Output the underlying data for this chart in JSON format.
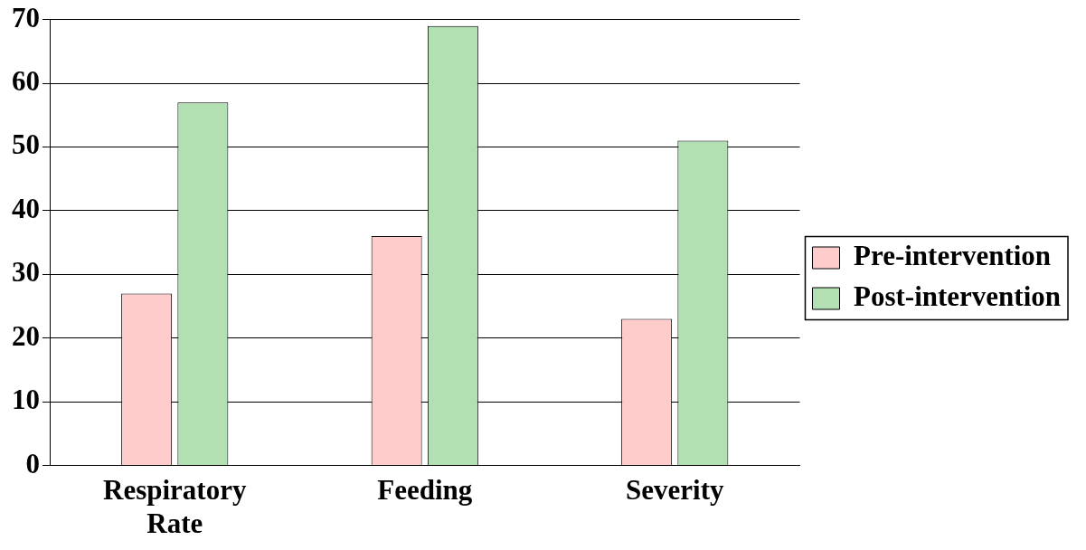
{
  "chart_data": {
    "type": "bar",
    "categories": [
      "Respiratory Rate",
      "Feeding",
      "Severity"
    ],
    "series": [
      {
        "name": "Pre-intervention",
        "color": "#ffcccc",
        "values": [
          27,
          36,
          23
        ]
      },
      {
        "name": "Post-intervention",
        "color": "#b3e0b3",
        "values": [
          57,
          69,
          51
        ]
      }
    ],
    "ylim": [
      0,
      70
    ],
    "yticks": [
      0,
      10,
      20,
      30,
      40,
      50,
      60,
      70
    ],
    "grid": "y",
    "legend": "right"
  }
}
